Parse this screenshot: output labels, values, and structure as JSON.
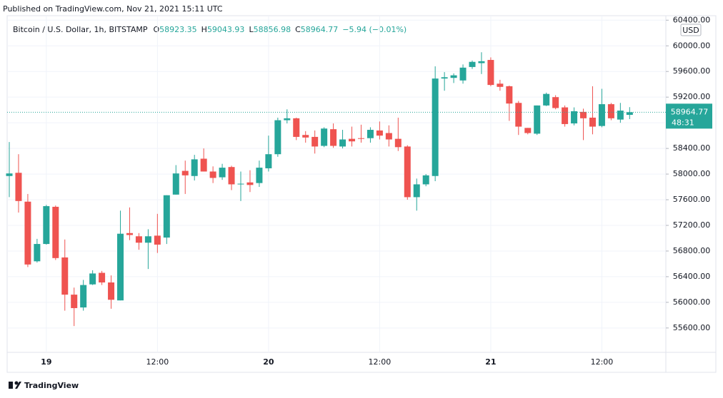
{
  "chart_data": {
    "type": "candlestick",
    "publish_note": "Published on TradingView.com, Nov 21, 2021 15:11 UTC",
    "title": "Bitcoin / U.S. Dollar, 1h, BITSTAMP",
    "ohlc_letters": [
      "O",
      "H",
      "L",
      "C"
    ],
    "change": "−5.94 (−0.01%)",
    "currency": "USD",
    "countdown": "48:31",
    "brand": "TradingView",
    "up_color": "#26a69a",
    "down_color": "#ef5350",
    "categories": [
      null,
      null,
      null,
      null,
      "19",
      null,
      null,
      null,
      null,
      null,
      null,
      null,
      null,
      null,
      null,
      null,
      "12:00",
      null,
      null,
      null,
      null,
      null,
      null,
      null,
      null,
      null,
      null,
      null,
      "20",
      null,
      null,
      null,
      null,
      null,
      null,
      null,
      null,
      null,
      null,
      null,
      "12:00",
      null,
      null,
      null,
      null,
      null,
      null,
      null,
      null,
      null,
      null,
      null,
      "21",
      null,
      null,
      null,
      null,
      null,
      null,
      null,
      null,
      null,
      null,
      null,
      "12:00",
      null,
      null,
      null
    ],
    "open": [
      57970,
      58020,
      57570,
      56640,
      56910,
      57490,
      56700,
      56120,
      55920,
      56280,
      56460,
      56310,
      56030,
      57080,
      57030,
      56930,
      57040,
      57010,
      57680,
      58050,
      57970,
      58240,
      58040,
      57950,
      58110,
      57840,
      57870,
      57860,
      58090,
      58310,
      58840,
      58870,
      58610,
      58580,
      58440,
      58700,
      58430,
      58550,
      58560,
      58560,
      58680,
      58640,
      58550,
      58430,
      57640,
      57840,
      57970,
      59490,
      59500,
      59460,
      59670,
      59730,
      59780,
      59410,
      59370,
      59110,
      58720,
      58630,
      59070,
      59200,
      59040,
      58790,
      58970,
      58880,
      58750,
      59090,
      58850,
      58923.35
    ],
    "high": [
      58500,
      58310,
      57690,
      56990,
      57520,
      57510,
      56980,
      56230,
      56350,
      56500,
      56490,
      56420,
      57430,
      57480,
      57080,
      57140,
      57380,
      57670,
      58140,
      58210,
      58300,
      58400,
      58120,
      58160,
      58130,
      58040,
      58060,
      58210,
      58600,
      58880,
      59010,
      58880,
      58670,
      58680,
      58730,
      58790,
      58690,
      58740,
      58770,
      58730,
      58820,
      58760,
      58880,
      58450,
      57930,
      58000,
      59680,
      59590,
      59570,
      59710,
      59770,
      59900,
      59820,
      59470,
      59380,
      59140,
      58720,
      59070,
      59270,
      59230,
      59070,
      59040,
      59020,
      59370,
      59330,
      59110,
      59110,
      59043.93
    ],
    "low": [
      57640,
      57400,
      56550,
      56620,
      56900,
      56660,
      55870,
      55630,
      55870,
      56270,
      56270,
      55900,
      56030,
      56970,
      56820,
      56520,
      56770,
      56910,
      57680,
      57690,
      57900,
      58040,
      57860,
      57910,
      57750,
      57580,
      57720,
      57800,
      58040,
      58270,
      58790,
      58530,
      58490,
      58320,
      58420,
      58410,
      58400,
      58430,
      58490,
      58490,
      58540,
      58430,
      58360,
      57600,
      57430,
      57810,
      57890,
      59300,
      59420,
      59410,
      59640,
      59560,
      59370,
      59300,
      58830,
      58610,
      58620,
      58610,
      59060,
      59010,
      58740,
      58760,
      58530,
      58620,
      58730,
      58840,
      58800,
      58856.98
    ],
    "close": [
      58010,
      57580,
      56590,
      56910,
      57500,
      56690,
      56120,
      55910,
      56270,
      56450,
      56310,
      56040,
      57070,
      57050,
      56930,
      57030,
      56900,
      57670,
      58010,
      57980,
      58230,
      58040,
      57940,
      58100,
      57840,
      57850,
      57830,
      58100,
      58310,
      58840,
      58870,
      58580,
      58570,
      58430,
      58710,
      58440,
      58540,
      58510,
      58550,
      58690,
      58600,
      58540,
      58420,
      57640,
      57840,
      57980,
      59490,
      59510,
      59540,
      59660,
      59750,
      59760,
      59390,
      59360,
      59100,
      58740,
      58640,
      59070,
      59250,
      59030,
      58780,
      58980,
      58870,
      58740,
      59090,
      58870,
      58990,
      58964.77
    ],
    "ylim": [
      55220,
      60470
    ],
    "yticks": [
      {
        "value": 55600,
        "label": "55600.00"
      },
      {
        "value": 56000,
        "label": "56000.00"
      },
      {
        "value": 56400,
        "label": "56400.00"
      },
      {
        "value": 56800,
        "label": "56800.00"
      },
      {
        "value": 57200,
        "label": "57200.00"
      },
      {
        "value": 57600,
        "label": "57600.00"
      },
      {
        "value": 58000,
        "label": "58000.00"
      },
      {
        "value": 58400,
        "label": "58400.00"
      },
      {
        "value": 58800,
        "label": "58800.00"
      },
      {
        "value": 59200,
        "label": "59200.00"
      },
      {
        "value": 59600,
        "label": "59600.00"
      },
      {
        "value": 60000,
        "label": "60000.00"
      },
      {
        "value": 60400,
        "label": "60400.00"
      }
    ],
    "grid": true
  }
}
